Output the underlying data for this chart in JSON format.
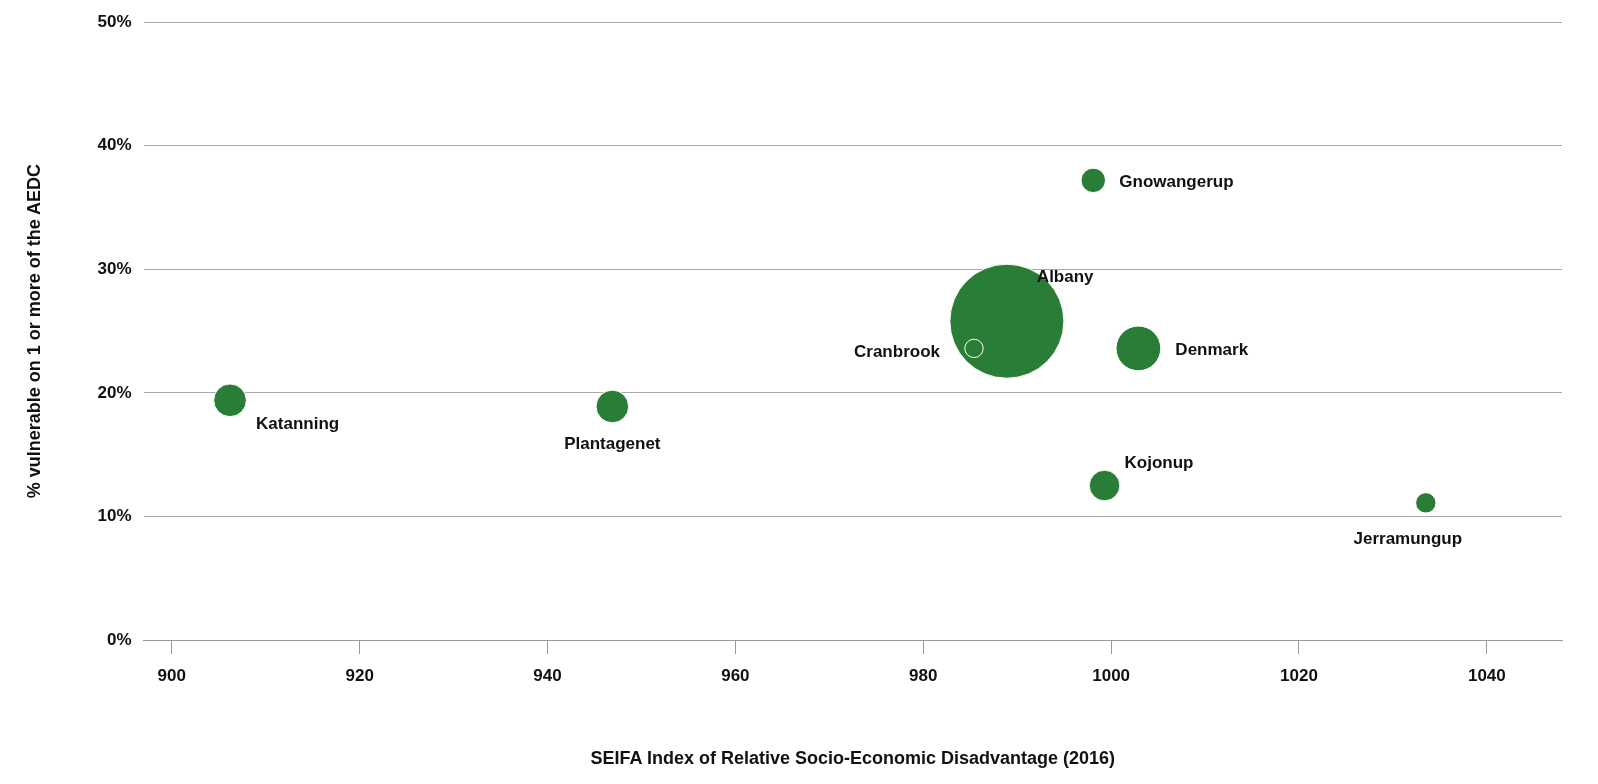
{
  "chart_data": {
    "type": "bubble",
    "xlabel": "SEIFA Index of Relative Socio-Economic Disadvantage (2016)",
    "ylabel": "% vulnerable on 1 or more of the AEDC",
    "x": [
      906.2,
      946.9,
      985.4,
      988.9,
      1002.9,
      998.1,
      999.3,
      1033.5
    ],
    "values": [
      19.4,
      18.9,
      23.6,
      25.8,
      23.6,
      37.2,
      12.5,
      11.1
    ],
    "sizes": [
      0.082,
      0.082,
      0.026,
      1,
      0.154,
      0.046,
      0.072,
      0.032
    ],
    "color": "#2a7d36",
    "xlim": [
      897,
      1048
    ],
    "xticks": [
      900,
      920,
      940,
      960,
      980,
      1000,
      1020,
      1040
    ],
    "ylim": [
      0,
      50
    ],
    "yticks": [
      {
        "value": 0,
        "label": "0%"
      },
      {
        "value": 10,
        "label": "10%"
      },
      {
        "value": 20,
        "label": "20%"
      },
      {
        "value": 30,
        "label": "30%"
      },
      {
        "value": 40,
        "label": "40%"
      },
      {
        "value": 50,
        "label": "50%"
      }
    ],
    "grid": "y",
    "legend": false,
    "annotations": [
      {
        "text": "Katanning",
        "x": 906.2,
        "y": 19.4
      },
      {
        "text": "Plantagenet",
        "x": 946.9,
        "y": 18.9
      },
      {
        "text": "Cranbrook",
        "x": 985.4,
        "y": 23.6
      },
      {
        "text": "Albany",
        "x": 988.9,
        "y": 25.8
      },
      {
        "text": "Denmark",
        "x": 1002.9,
        "y": 23.6
      },
      {
        "text": "Gnowangerup",
        "x": 998.1,
        "y": 37.2
      },
      {
        "text": "Kojonup",
        "x": 999.3,
        "y": 12.5
      },
      {
        "text": "Jerramungup",
        "x": 1033.5,
        "y": 11.1
      }
    ]
  }
}
